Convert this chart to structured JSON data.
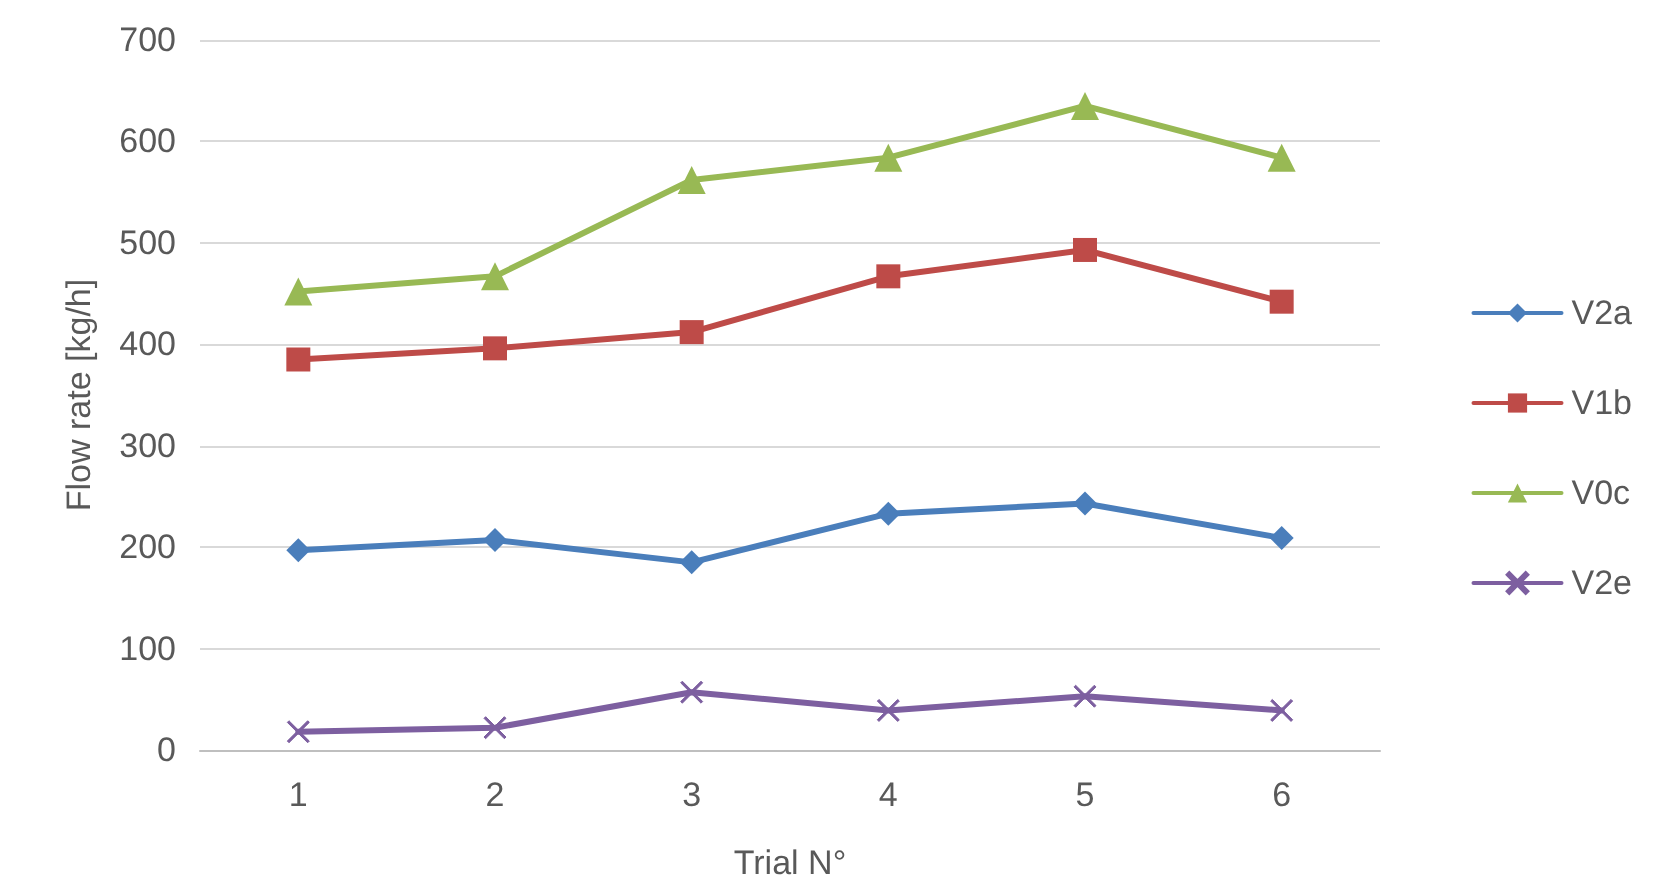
{
  "chart_data": {
    "type": "line",
    "xlabel": "Trial N°",
    "ylabel": "Flow rate [kg/h]",
    "categories": [
      "1",
      "2",
      "3",
      "4",
      "5",
      "6"
    ],
    "series": [
      {
        "name": "V2a",
        "color": "#4a7ebb",
        "marker": "diamond",
        "values": [
          197,
          207,
          185,
          233,
          243,
          209
        ]
      },
      {
        "name": "V1b",
        "color": "#be4b48",
        "marker": "square",
        "values": [
          385,
          396,
          412,
          467,
          493,
          442
        ]
      },
      {
        "name": "V0c",
        "color": "#98b954",
        "marker": "triangle",
        "values": [
          452,
          467,
          562,
          584,
          635,
          584
        ]
      },
      {
        "name": "V2e",
        "color": "#7d5fa0",
        "marker": "cross",
        "values": [
          18,
          22,
          57,
          39,
          53,
          39
        ]
      }
    ],
    "ylim": [
      0,
      700
    ],
    "yticks": [
      0,
      100,
      200,
      300,
      400,
      500,
      600,
      700
    ],
    "grid": "y",
    "legend": "right",
    "line_style": "solid"
  }
}
